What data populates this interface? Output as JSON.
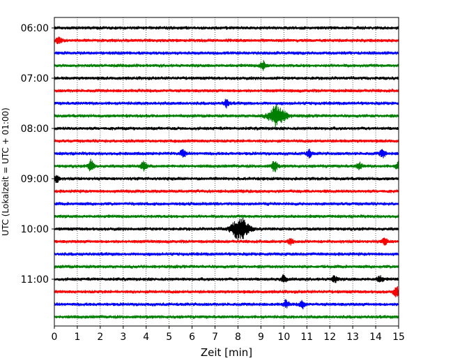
{
  "chart_data": {
    "type": "line",
    "title": "",
    "xlabel": "Zeit  [min]",
    "ylabel": "UTC (Lokalzeit = UTC + 01:00)",
    "xlim": [
      0,
      15
    ],
    "x_ticks": [
      0,
      1,
      2,
      3,
      4,
      5,
      6,
      7,
      8,
      9,
      10,
      11,
      12,
      13,
      14,
      15
    ],
    "y_tick_labels": [
      "06:00",
      "07:00",
      "08:00",
      "09:00",
      "10:00",
      "11:00"
    ],
    "trace_interval_min": 15,
    "vertical_grid": "dotted",
    "line_colors": [
      "#000000",
      "#ff0000",
      "#0000ff",
      "#008000"
    ],
    "traces": [
      {
        "start": "06:00",
        "color": "#000000",
        "events": []
      },
      {
        "start": "06:15",
        "color": "#ff0000",
        "events": [
          {
            "minute": 0.2,
            "amplitude": 0.5
          }
        ]
      },
      {
        "start": "06:30",
        "color": "#0000ff",
        "events": []
      },
      {
        "start": "06:45",
        "color": "#008000",
        "events": [
          {
            "minute": 9.1,
            "amplitude": 0.7
          }
        ]
      },
      {
        "start": "07:00",
        "color": "#000000",
        "events": []
      },
      {
        "start": "07:15",
        "color": "#ff0000",
        "events": []
      },
      {
        "start": "07:30",
        "color": "#0000ff",
        "events": [
          {
            "minute": 7.5,
            "amplitude": 0.6
          }
        ]
      },
      {
        "start": "07:45",
        "color": "#008000",
        "events": [
          {
            "minute": 9.7,
            "amplitude": 1.6
          }
        ]
      },
      {
        "start": "08:00",
        "color": "#000000",
        "events": []
      },
      {
        "start": "08:15",
        "color": "#ff0000",
        "events": []
      },
      {
        "start": "08:30",
        "color": "#0000ff",
        "events": [
          {
            "minute": 5.6,
            "amplitude": 0.5
          },
          {
            "minute": 11.1,
            "amplitude": 0.6
          },
          {
            "minute": 14.3,
            "amplitude": 0.6
          }
        ]
      },
      {
        "start": "08:45",
        "color": "#008000",
        "events": [
          {
            "minute": 1.6,
            "amplitude": 1.0
          },
          {
            "minute": 3.9,
            "amplitude": 0.7
          },
          {
            "minute": 9.6,
            "amplitude": 0.9
          },
          {
            "minute": 13.3,
            "amplitude": 0.5
          },
          {
            "minute": 15.0,
            "amplitude": 0.6
          }
        ]
      },
      {
        "start": "09:00",
        "color": "#000000",
        "events": [
          {
            "minute": 0.1,
            "amplitude": 0.6
          }
        ]
      },
      {
        "start": "09:15",
        "color": "#ff0000",
        "events": []
      },
      {
        "start": "09:30",
        "color": "#0000ff",
        "events": []
      },
      {
        "start": "09:45",
        "color": "#008000",
        "events": []
      },
      {
        "start": "10:00",
        "color": "#000000",
        "events": [
          {
            "minute": 8.1,
            "amplitude": 1.8
          }
        ]
      },
      {
        "start": "10:15",
        "color": "#ff0000",
        "events": [
          {
            "minute": 10.3,
            "amplitude": 0.4
          },
          {
            "minute": 14.4,
            "amplitude": 0.5
          }
        ]
      },
      {
        "start": "10:30",
        "color": "#0000ff",
        "events": []
      },
      {
        "start": "10:45",
        "color": "#008000",
        "events": []
      },
      {
        "start": "11:00",
        "color": "#000000",
        "events": [
          {
            "minute": 10.0,
            "amplitude": 0.6
          },
          {
            "minute": 12.2,
            "amplitude": 0.5
          },
          {
            "minute": 14.2,
            "amplitude": 0.5
          }
        ]
      },
      {
        "start": "11:15",
        "color": "#ff0000",
        "events": [
          {
            "minute": 14.9,
            "amplitude": 0.7
          }
        ]
      },
      {
        "start": "11:30",
        "color": "#0000ff",
        "events": [
          {
            "minute": 10.1,
            "amplitude": 0.6
          },
          {
            "minute": 10.8,
            "amplitude": 0.6
          }
        ]
      },
      {
        "start": "11:45",
        "color": "#008000",
        "events": []
      }
    ]
  }
}
